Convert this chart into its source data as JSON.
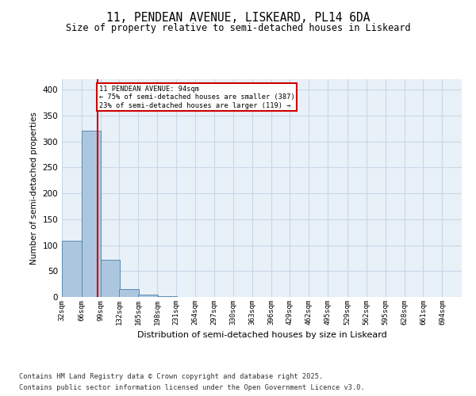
{
  "title_line1": "11, PENDEAN AVENUE, LISKEARD, PL14 6DA",
  "title_line2": "Size of property relative to semi-detached houses in Liskeard",
  "xlabel": "Distribution of semi-detached houses by size in Liskeard",
  "ylabel": "Number of semi-detached properties",
  "bin_labels": [
    "32sqm",
    "66sqm",
    "99sqm",
    "132sqm",
    "165sqm",
    "198sqm",
    "231sqm",
    "264sqm",
    "297sqm",
    "330sqm",
    "363sqm",
    "396sqm",
    "429sqm",
    "462sqm",
    "495sqm",
    "529sqm",
    "562sqm",
    "595sqm",
    "628sqm",
    "661sqm",
    "694sqm"
  ],
  "bin_edges": [
    32,
    66,
    99,
    132,
    165,
    198,
    231,
    264,
    297,
    330,
    363,
    396,
    429,
    462,
    495,
    529,
    562,
    595,
    628,
    661,
    694
  ],
  "bar_heights": [
    108,
    320,
    72,
    15,
    4,
    1,
    0,
    0,
    0,
    0,
    0,
    0,
    0,
    0,
    0,
    0,
    0,
    0,
    0,
    0
  ],
  "bar_color": "#adc6e0",
  "bar_edge_color": "#5a8ab0",
  "grid_color": "#c8d8e8",
  "bg_color": "#e8f0f8",
  "property_size": 94,
  "red_line_color": "#cc0000",
  "annotation_box_color": "#cc0000",
  "annotation_text_line1": "11 PENDEAN AVENUE: 94sqm",
  "annotation_text_line2": "← 75% of semi-detached houses are smaller (387)",
  "annotation_text_line3": "23% of semi-detached houses are larger (119) →",
  "ylim": [
    0,
    420
  ],
  "yticks": [
    0,
    50,
    100,
    150,
    200,
    250,
    300,
    350,
    400
  ],
  "footer_line1": "Contains HM Land Registry data © Crown copyright and database right 2025.",
  "footer_line2": "Contains public sector information licensed under the Open Government Licence v3.0."
}
